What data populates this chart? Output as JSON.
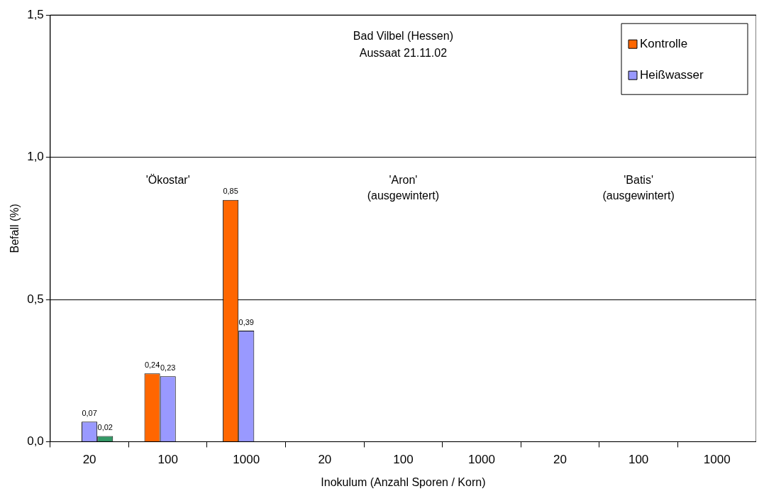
{
  "chart_data": {
    "type": "bar",
    "title": "Bad Vilbel (Hessen)",
    "subtitle": "Aussaat 21.11.02",
    "xlabel": "Inokulum (Anzahl Sporen / Korn)",
    "ylabel": "Befall (%)",
    "categories": [
      "20",
      "100",
      "1000",
      "20",
      "100",
      "1000",
      "20",
      "100",
      "1000"
    ],
    "series": [
      {
        "name": "Kontrolle",
        "color": "#ff6600",
        "values": [
          null,
          0.24,
          0.85,
          null,
          null,
          null,
          null,
          null,
          null
        ],
        "value_labels": [
          null,
          "0,24",
          "0,85",
          null,
          null,
          null,
          null,
          null,
          null
        ]
      },
      {
        "name": "Heißwasser",
        "color": "#9999ff",
        "values": [
          0.07,
          0.23,
          0.39,
          null,
          null,
          null,
          null,
          null,
          null
        ],
        "value_labels": [
          "0,07",
          "0,23",
          "0,39",
          null,
          null,
          null,
          null,
          null,
          null
        ]
      },
      {
        "color": "#339966",
        "values": [
          0.02,
          null,
          null,
          null,
          null,
          null,
          null,
          null,
          null
        ],
        "value_labels": [
          "0,02",
          null,
          null,
          null,
          null,
          null,
          null,
          null,
          null
        ]
      }
    ],
    "ylim": [
      0,
      1.5
    ],
    "yticks": [
      {
        "value": 0,
        "label": "0,0"
      },
      {
        "value": 0.5,
        "label": "0,5"
      },
      {
        "value": 1,
        "label": "1,0"
      },
      {
        "value": 1.5,
        "label": "1,5"
      }
    ],
    "grid": "y",
    "legend": "top right",
    "annotations": [
      "'Ökostar'",
      "'Aron'\n(ausgewintert)",
      "'Batis'\n(ausgewintert)"
    ]
  }
}
